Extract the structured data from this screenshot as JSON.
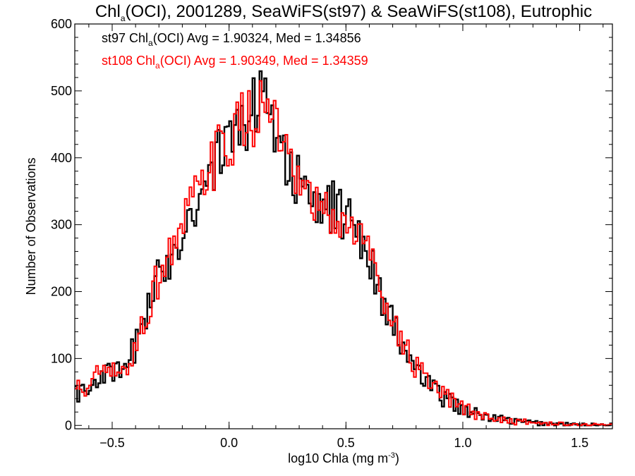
{
  "chart_data": {
    "type": "histogram",
    "title": {
      "pre": "Chl",
      "sub": "a",
      "post": "(OCI), 2001289, SeaWiFS(st97) & SeaWiFS(st108), Eutrophic"
    },
    "xlabel": {
      "pre": "log10 Chla (mg m",
      "sup": "-3",
      "post": ")"
    },
    "ylabel": "Number of Observations",
    "xlim": [
      -0.66,
      1.64
    ],
    "ylim": [
      -5,
      600
    ],
    "xticks": [
      -0.5,
      0.0,
      0.5,
      1.0,
      1.5
    ],
    "xtick_labels": [
      "−0.5",
      "0.0",
      "0.5",
      "1.0",
      "1.5"
    ],
    "yticks": [
      0,
      100,
      200,
      300,
      400,
      500,
      600
    ],
    "ytick_labels": [
      "0",
      "100",
      "200",
      "300",
      "400",
      "500",
      "600"
    ],
    "annotations": [
      {
        "pre": "st97 Chl",
        "sub": "a",
        "post": "(OCI) Avg = 1.90324, Med = 1.34856",
        "color": "#000000"
      },
      {
        "pre": "st108 Chl",
        "sub": "a",
        "post": "(OCI) Avg = 1.90349, Med = 1.34359",
        "color": "#ff0000"
      }
    ],
    "series": [
      {
        "color": "#000000",
        "x": [
          -0.6,
          -0.55,
          -0.5,
          -0.45,
          -0.4,
          -0.35,
          -0.3,
          -0.25,
          -0.2,
          -0.15,
          -0.1,
          -0.05,
          0.0,
          0.05,
          0.1,
          0.15,
          0.2,
          0.25,
          0.3,
          0.35,
          0.4,
          0.45,
          0.5,
          0.55,
          0.6,
          0.65,
          0.7,
          0.75,
          0.8,
          0.85,
          0.9,
          0.95,
          1.0,
          1.05,
          1.1,
          1.15,
          1.2,
          1.25,
          1.3,
          1.35,
          1.4,
          1.5,
          1.6
        ],
        "y": [
          50,
          80,
          75,
          78,
          120,
          175,
          220,
          255,
          290,
          330,
          360,
          400,
          420,
          445,
          470,
          505,
          450,
          390,
          360,
          320,
          330,
          325,
          310,
          300,
          250,
          200,
          150,
          110,
          85,
          60,
          45,
          35,
          25,
          18,
          12,
          10,
          7,
          5,
          4,
          3,
          2,
          1,
          1
        ]
      },
      {
        "color": "#ff0000",
        "x": [
          -0.6,
          -0.55,
          -0.5,
          -0.45,
          -0.4,
          -0.35,
          -0.3,
          -0.25,
          -0.2,
          -0.15,
          -0.1,
          -0.05,
          0.0,
          0.05,
          0.1,
          0.15,
          0.2,
          0.25,
          0.3,
          0.35,
          0.4,
          0.45,
          0.5,
          0.55,
          0.6,
          0.65,
          0.7,
          0.75,
          0.8,
          0.85,
          0.9,
          0.95,
          1.0,
          1.05,
          1.1,
          1.15,
          1.2,
          1.25,
          1.3,
          1.35,
          1.4,
          1.5,
          1.6
        ],
        "y": [
          55,
          82,
          77,
          75,
          118,
          170,
          225,
          260,
          295,
          335,
          365,
          405,
          425,
          450,
          460,
          480,
          450,
          385,
          350,
          330,
          320,
          305,
          300,
          290,
          260,
          210,
          160,
          115,
          88,
          62,
          48,
          37,
          26,
          18,
          13,
          10,
          7,
          5,
          4,
          3,
          2,
          1,
          1
        ]
      }
    ]
  }
}
